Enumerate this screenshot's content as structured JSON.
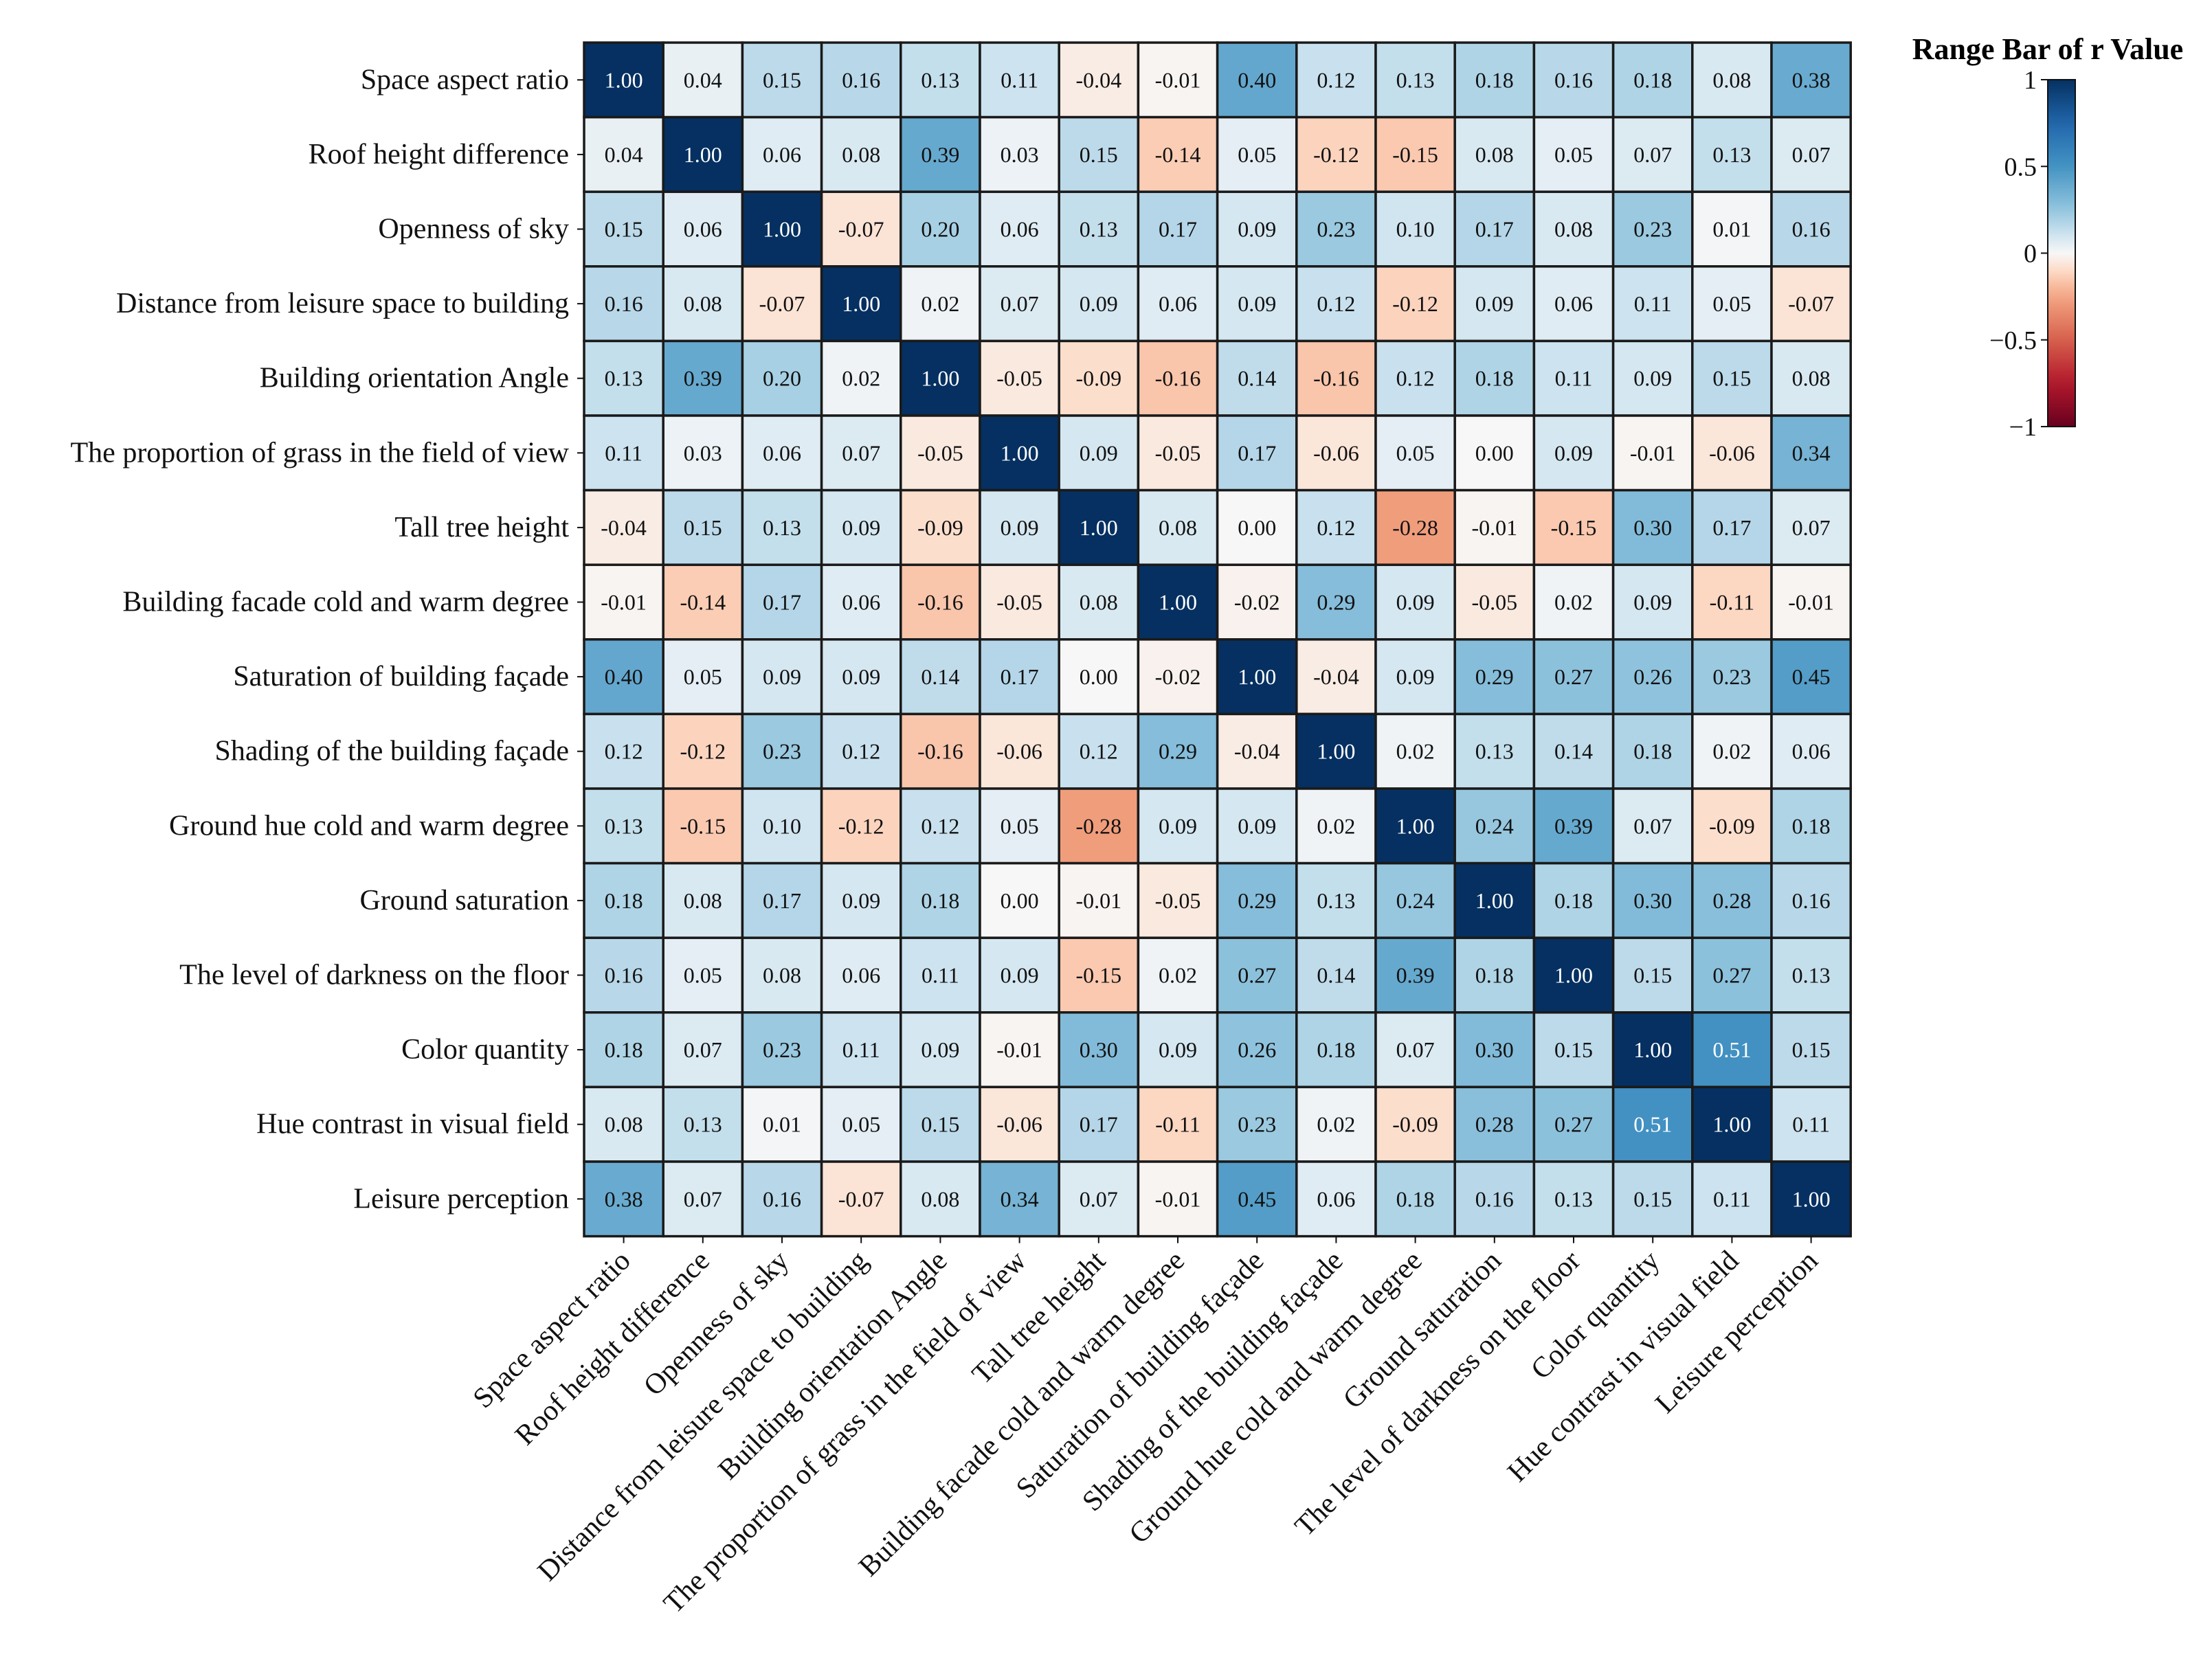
{
  "chart_data": {
    "type": "heatmap",
    "title": "",
    "labels": [
      "Space aspect ratio",
      "Roof height difference",
      "Openness of sky",
      "Distance from leisure space to building",
      "Building orientation Angle",
      "The proportion of grass in the field of view",
      "Tall tree height",
      "Building facade cold and warm degree",
      "Saturation of building façade",
      "Shading of the building façade",
      "Ground hue cold and warm degree",
      "Ground saturation",
      "The level of darkness on the floor",
      "Color quantity",
      "Hue contrast in visual field",
      "Leisure perception"
    ],
    "matrix": [
      [
        1.0,
        0.04,
        0.15,
        0.16,
        0.13,
        0.11,
        -0.04,
        -0.01,
        0.4,
        0.12,
        0.13,
        0.18,
        0.16,
        0.18,
        0.08,
        0.38
      ],
      [
        0.04,
        1.0,
        0.06,
        0.08,
        0.39,
        0.03,
        0.15,
        -0.14,
        0.05,
        -0.12,
        -0.15,
        0.08,
        0.05,
        0.07,
        0.13,
        0.07
      ],
      [
        0.15,
        0.06,
        1.0,
        -0.07,
        0.2,
        0.06,
        0.13,
        0.17,
        0.09,
        0.23,
        0.1,
        0.17,
        0.08,
        0.23,
        0.01,
        0.16
      ],
      [
        0.16,
        0.08,
        -0.07,
        1.0,
        0.02,
        0.07,
        0.09,
        0.06,
        0.09,
        0.12,
        -0.12,
        0.09,
        0.06,
        0.11,
        0.05,
        -0.07
      ],
      [
        0.13,
        0.39,
        0.2,
        0.02,
        1.0,
        -0.05,
        -0.09,
        -0.16,
        0.14,
        -0.16,
        0.12,
        0.18,
        0.11,
        0.09,
        0.15,
        0.08
      ],
      [
        0.11,
        0.03,
        0.06,
        0.07,
        -0.05,
        1.0,
        0.09,
        -0.05,
        0.17,
        -0.06,
        0.05,
        0.0,
        0.09,
        -0.01,
        -0.06,
        0.34
      ],
      [
        -0.04,
        0.15,
        0.13,
        0.09,
        -0.09,
        0.09,
        1.0,
        0.08,
        0.0,
        0.12,
        -0.28,
        -0.01,
        -0.15,
        0.3,
        0.17,
        0.07
      ],
      [
        -0.01,
        -0.14,
        0.17,
        0.06,
        -0.16,
        -0.05,
        0.08,
        1.0,
        -0.02,
        0.29,
        0.09,
        -0.05,
        0.02,
        0.09,
        -0.11,
        -0.01
      ],
      [
        0.4,
        0.05,
        0.09,
        0.09,
        0.14,
        0.17,
        0.0,
        -0.02,
        1.0,
        -0.04,
        0.09,
        0.29,
        0.27,
        0.26,
        0.23,
        0.45
      ],
      [
        0.12,
        -0.12,
        0.23,
        0.12,
        -0.16,
        -0.06,
        0.12,
        0.29,
        -0.04,
        1.0,
        0.02,
        0.13,
        0.14,
        0.18,
        0.02,
        0.06
      ],
      [
        0.13,
        -0.15,
        0.1,
        -0.12,
        0.12,
        0.05,
        -0.28,
        0.09,
        0.09,
        0.02,
        1.0,
        0.24,
        0.39,
        0.07,
        -0.09,
        0.18
      ],
      [
        0.18,
        0.08,
        0.17,
        0.09,
        0.18,
        0.0,
        -0.01,
        -0.05,
        0.29,
        0.13,
        0.24,
        1.0,
        0.18,
        0.3,
        0.28,
        0.16
      ],
      [
        0.16,
        0.05,
        0.08,
        0.06,
        0.11,
        0.09,
        -0.15,
        0.02,
        0.27,
        0.14,
        0.39,
        0.18,
        1.0,
        0.15,
        0.27,
        0.13
      ],
      [
        0.18,
        0.07,
        0.23,
        0.11,
        0.09,
        -0.01,
        0.3,
        0.09,
        0.26,
        0.18,
        0.07,
        0.3,
        0.15,
        1.0,
        0.51,
        0.15
      ],
      [
        0.08,
        0.13,
        0.01,
        0.05,
        0.15,
        -0.06,
        0.17,
        -0.11,
        0.23,
        0.02,
        -0.09,
        0.28,
        0.27,
        0.51,
        1.0,
        0.11
      ],
      [
        0.38,
        0.07,
        0.16,
        -0.07,
        0.08,
        0.34,
        0.07,
        -0.01,
        0.45,
        0.06,
        0.18,
        0.16,
        0.13,
        0.15,
        0.11,
        1.0
      ]
    ],
    "colorbar": {
      "title": "Range Bar of  r  Value",
      "range": [
        -1,
        1
      ],
      "ticks": [
        1,
        0.5,
        0,
        -0.5,
        -1
      ],
      "tick_labels": [
        "1",
        "0.5",
        "0",
        "−0.5",
        "−1"
      ],
      "colormap": "RdBu"
    },
    "value_format": "2 decimals"
  }
}
